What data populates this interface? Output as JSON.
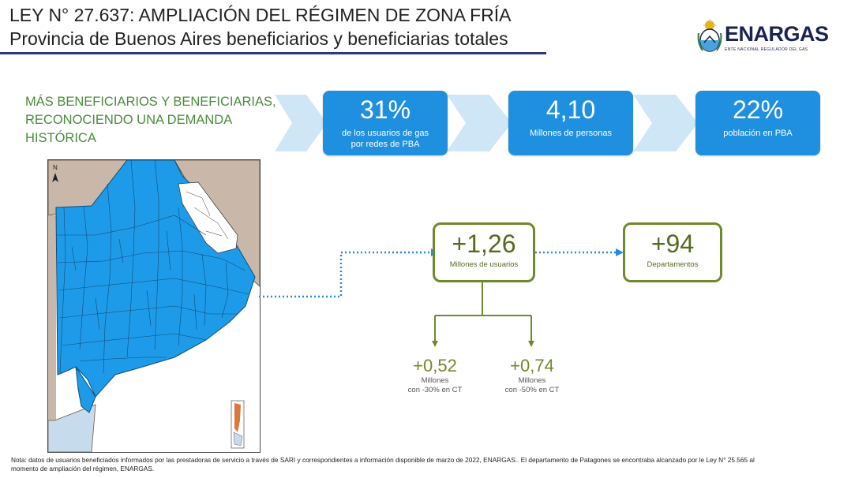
{
  "header": {
    "title_line1": "LEY N° 27.637: AMPLIACIÓN DEL RÉGIMEN DE ZONA FRÍA",
    "title_line2": "Provincia de Buenos Aires beneficiarios y beneficiarias totales"
  },
  "logo": {
    "name": "ENARGAS",
    "subtitle": "ENTE NACIONAL REGULADOR DEL GAS",
    "icon": "argentina-coat-of-arms-icon"
  },
  "headline": {
    "line1": "MÁS BENEFICIARIOS Y BENEFICIARIAS,",
    "line2": "RECONOCIENDO UNA DEMANDA",
    "line3": "HISTÓRICA"
  },
  "stats": [
    {
      "value": "31%",
      "label_line1": "de  los usuarios de gas",
      "label_line2": "por redes de PBA"
    },
    {
      "value": "4,10",
      "label_line1": "Millones de personas",
      "label_line2": ""
    },
    {
      "value": "22%",
      "label_line1": "población  en PBA",
      "label_line2": ""
    }
  ],
  "users": {
    "value": "+1,26",
    "label": "Millones de usuarios"
  },
  "departments": {
    "value": "+94",
    "label": "Departamentos"
  },
  "breakdown": [
    {
      "value": "+0,52",
      "label_line1": "Millones",
      "label_line2": "con -30% en CT"
    },
    {
      "value": "+0,74",
      "label_line1": "Millones",
      "label_line2": "con -50% en CT"
    }
  ],
  "map": {
    "north_label": "N",
    "fill_color": "#1e9be8",
    "excluded_color": "#ffffff",
    "neighbor_color": "#c9b8aa"
  },
  "colors": {
    "stat_blue": "#1f8fe0",
    "green": "#6e8a2a",
    "headline_green": "#4a8b3c",
    "navy": "#2b3a7a"
  },
  "note": {
    "line1": "Nota:  datos de usuarios beneficiados informados por las prestadoras de servicio a través de SARI y correspondientes a información disponible de marzo de 2022, ENARGAS.. El departamento de Patagones se encontraba alcanzado por le Ley N° 25.565 al",
    "line2": "momento de ampliación del régimen, ENARGAS."
  }
}
